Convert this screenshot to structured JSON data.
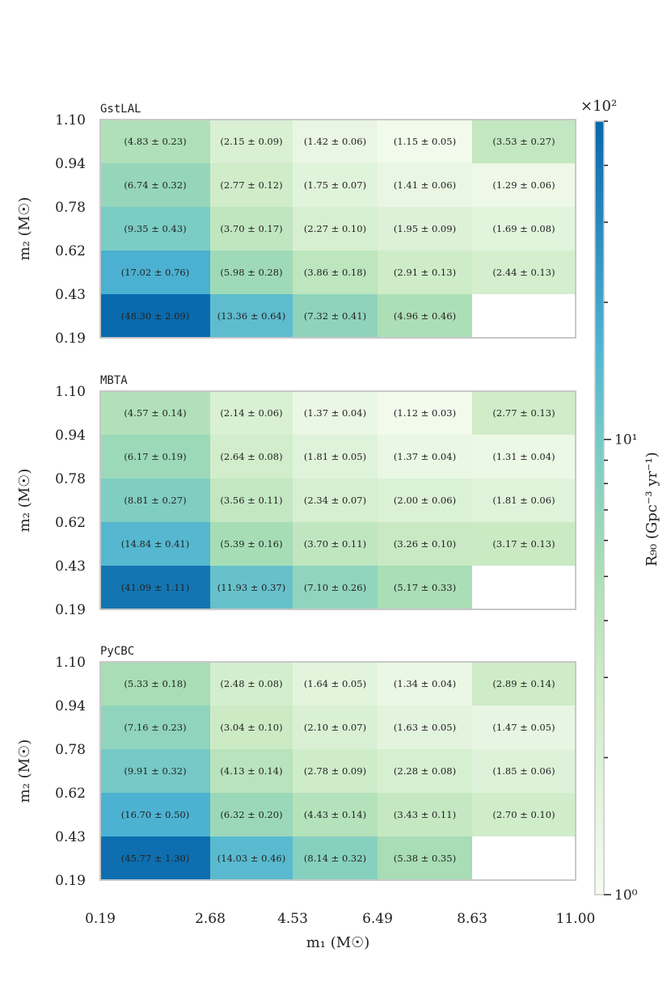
{
  "chart_data": [
    {
      "type": "heatmap",
      "title": "GstLAL",
      "x_edges": [
        0.19,
        2.68,
        4.53,
        6.49,
        8.63,
        11.0
      ],
      "y_edges": [
        0.19,
        0.43,
        0.62,
        0.78,
        0.94,
        1.1
      ],
      "x_tick_labels": [
        "0.19",
        "2.68",
        "4.53",
        "6.49",
        "8.63",
        "11.00"
      ],
      "y_tick_labels": [
        "0.19",
        "0.43",
        "0.62",
        "0.78",
        "0.94",
        "1.10"
      ],
      "ylabel": "m₂ (M☉)",
      "rows_top_to_bottom": [
        {
          "values": [
            4.83,
            2.15,
            1.42,
            1.15,
            3.53
          ],
          "labels": [
            "(4.83 ± 0.23)",
            "(2.15 ± 0.09)",
            "(1.42 ± 0.06)",
            "(1.15 ± 0.05)",
            "(3.53 ± 0.27)"
          ]
        },
        {
          "values": [
            6.74,
            2.77,
            1.75,
            1.41,
            1.29
          ],
          "labels": [
            "(6.74 ± 0.32)",
            "(2.77 ± 0.12)",
            "(1.75 ± 0.07)",
            "(1.41 ± 0.06)",
            "(1.29 ± 0.06)"
          ]
        },
        {
          "values": [
            9.35,
            3.7,
            2.27,
            1.95,
            1.69
          ],
          "labels": [
            "(9.35 ± 0.43)",
            "(3.70 ± 0.17)",
            "(2.27 ± 0.10)",
            "(1.95 ± 0.09)",
            "(1.69 ± 0.08)"
          ]
        },
        {
          "values": [
            17.02,
            5.98,
            3.86,
            2.91,
            2.44
          ],
          "labels": [
            "(17.02 ± 0.76)",
            "(5.98 ± 0.28)",
            "(3.86 ± 0.18)",
            "(2.91 ± 0.13)",
            "(2.44 ± 0.13)"
          ]
        },
        {
          "values": [
            48.3,
            13.36,
            7.32,
            4.96,
            null
          ],
          "labels": [
            "(48.30 ± 2.09)",
            "(13.36 ± 0.64)",
            "(7.32 ± 0.41)",
            "(4.96 ± 0.46)",
            ""
          ]
        }
      ]
    },
    {
      "type": "heatmap",
      "title": "MBTA",
      "x_edges": [
        0.19,
        2.68,
        4.53,
        6.49,
        8.63,
        11.0
      ],
      "y_edges": [
        0.19,
        0.43,
        0.62,
        0.78,
        0.94,
        1.1
      ],
      "x_tick_labels": [
        "0.19",
        "2.68",
        "4.53",
        "6.49",
        "8.63",
        "11.00"
      ],
      "y_tick_labels": [
        "0.19",
        "0.43",
        "0.62",
        "0.78",
        "0.94",
        "1.10"
      ],
      "ylabel": "m₂ (M☉)",
      "rows_top_to_bottom": [
        {
          "values": [
            4.57,
            2.14,
            1.37,
            1.12,
            2.77
          ],
          "labels": [
            "(4.57 ± 0.14)",
            "(2.14 ± 0.06)",
            "(1.37 ± 0.04)",
            "(1.12 ± 0.03)",
            "(2.77 ± 0.13)"
          ]
        },
        {
          "values": [
            6.17,
            2.64,
            1.81,
            1.37,
            1.31
          ],
          "labels": [
            "(6.17 ± 0.19)",
            "(2.64 ± 0.08)",
            "(1.81 ± 0.05)",
            "(1.37 ± 0.04)",
            "(1.31 ± 0.04)"
          ]
        },
        {
          "values": [
            8.81,
            3.56,
            2.34,
            2.0,
            1.81
          ],
          "labels": [
            "(8.81 ± 0.27)",
            "(3.56 ± 0.11)",
            "(2.34 ± 0.07)",
            "(2.00 ± 0.06)",
            "(1.81 ± 0.06)"
          ]
        },
        {
          "values": [
            14.84,
            5.39,
            3.7,
            3.26,
            3.17
          ],
          "labels": [
            "(14.84 ± 0.41)",
            "(5.39 ± 0.16)",
            "(3.70 ± 0.11)",
            "(3.26 ± 0.10)",
            "(3.17 ± 0.13)"
          ]
        },
        {
          "values": [
            41.09,
            11.93,
            7.1,
            5.17,
            null
          ],
          "labels": [
            "(41.09 ± 1.11)",
            "(11.93 ± 0.37)",
            "(7.10 ± 0.26)",
            "(5.17 ± 0.33)",
            ""
          ]
        }
      ]
    },
    {
      "type": "heatmap",
      "title": "PyCBC",
      "x_edges": [
        0.19,
        2.68,
        4.53,
        6.49,
        8.63,
        11.0
      ],
      "y_edges": [
        0.19,
        0.43,
        0.62,
        0.78,
        0.94,
        1.1
      ],
      "x_tick_labels": [
        "0.19",
        "2.68",
        "4.53",
        "6.49",
        "8.63",
        "11.00"
      ],
      "y_tick_labels": [
        "0.19",
        "0.43",
        "0.62",
        "0.78",
        "0.94",
        "1.10"
      ],
      "ylabel": "m₂ (M☉)",
      "xlabel": "m₁ (M☉)",
      "rows_top_to_bottom": [
        {
          "values": [
            5.33,
            2.48,
            1.64,
            1.34,
            2.89
          ],
          "labels": [
            "(5.33 ± 0.18)",
            "(2.48 ± 0.08)",
            "(1.64 ± 0.05)",
            "(1.34 ± 0.04)",
            "(2.89 ± 0.14)"
          ]
        },
        {
          "values": [
            7.16,
            3.04,
            2.1,
            1.63,
            1.47
          ],
          "labels": [
            "(7.16 ± 0.23)",
            "(3.04 ± 0.10)",
            "(2.10 ± 0.07)",
            "(1.63 ± 0.05)",
            "(1.47 ± 0.05)"
          ]
        },
        {
          "values": [
            9.91,
            4.13,
            2.78,
            2.28,
            1.85
          ],
          "labels": [
            "(9.91 ± 0.32)",
            "(4.13 ± 0.14)",
            "(2.78 ± 0.09)",
            "(2.28 ± 0.08)",
            "(1.85 ± 0.06)"
          ]
        },
        {
          "values": [
            16.7,
            6.32,
            4.43,
            3.43,
            2.7
          ],
          "labels": [
            "(16.70 ± 0.50)",
            "(6.32 ± 0.20)",
            "(4.43 ± 0.14)",
            "(3.43 ± 0.11)",
            "(2.70 ± 0.10)"
          ]
        },
        {
          "values": [
            45.77,
            14.03,
            8.14,
            5.38,
            null
          ],
          "labels": [
            "(45.77 ± 1.30)",
            "(14.03 ± 0.46)",
            "(8.14 ± 0.32)",
            "(5.38 ± 0.35)",
            ""
          ]
        }
      ]
    }
  ],
  "colorbar": {
    "scale": "log",
    "range": [
      1,
      50
    ],
    "multiplier_label": "×10²",
    "label": "R₉₀ (Gpc⁻³ yr⁻¹)",
    "major_ticks": [
      {
        "value": 1,
        "label": "10⁰"
      },
      {
        "value": 10,
        "label": "10¹"
      }
    ],
    "minor_ticks": [
      2,
      3,
      4,
      5,
      6,
      7,
      8,
      9,
      20,
      30,
      40,
      50
    ],
    "colormap": [
      "#f7fcf0",
      "#e0f3db",
      "#ccebc5",
      "#a8ddb5",
      "#7bccc4",
      "#4eb3d3",
      "#2b8cbe",
      "#0868ac"
    ]
  }
}
